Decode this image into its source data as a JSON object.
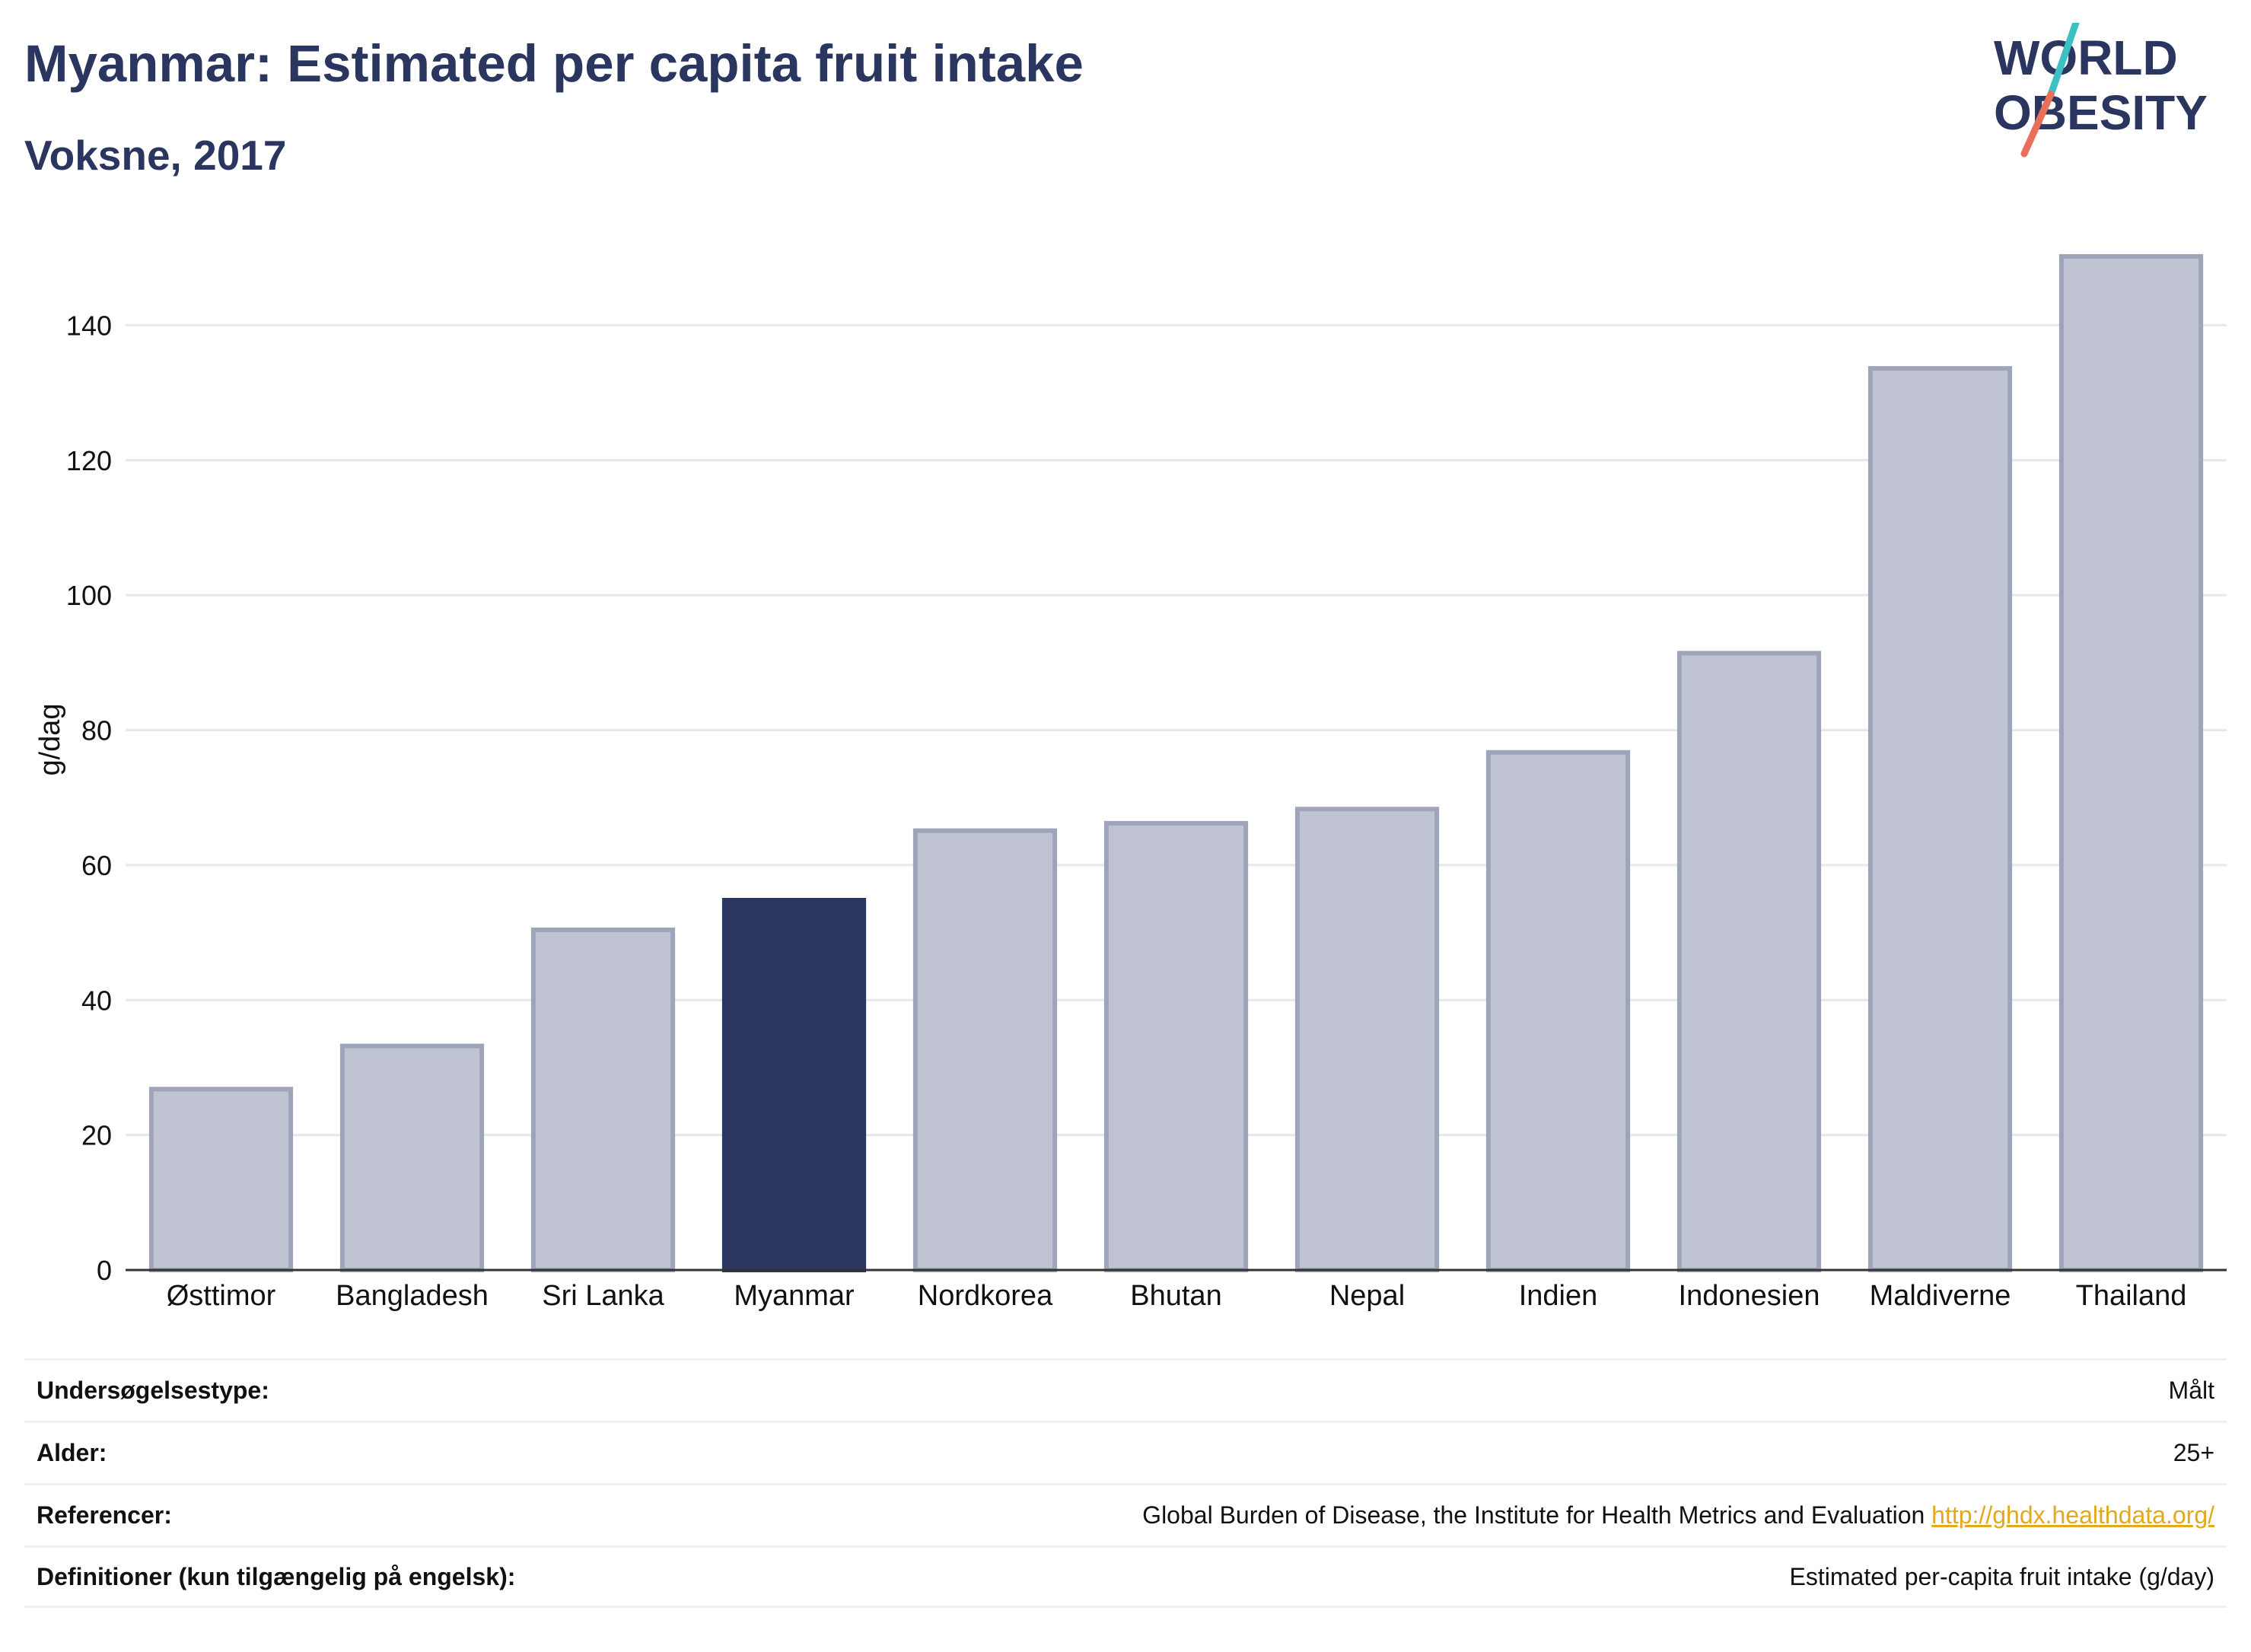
{
  "header": {
    "title": "Myanmar: Estimated per capita fruit intake",
    "subtitle": "Voksne, 2017"
  },
  "logo": {
    "line1": "WORLD",
    "line2": "OBESITY",
    "icon": "world-obesity-logo",
    "colors": {
      "text": "#2b3660",
      "slash_top": "#3cc0c3",
      "slash_bottom": "#e8705a"
    }
  },
  "chart_data": {
    "type": "bar",
    "categories": [
      "Østtimor",
      "Bangladesh",
      "Sri Lanka",
      "Myanmar",
      "Nordkorea",
      "Bhutan",
      "Nepal",
      "Indien",
      "Indonesien",
      "Maldiverne",
      "Thailand"
    ],
    "values": [
      26.8,
      33.2,
      50.4,
      54.8,
      65.1,
      66.2,
      68.3,
      76.7,
      91.4,
      133.6,
      150.2
    ],
    "highlight": "Myanmar",
    "ylabel": "g/dag",
    "xlabel": "",
    "ylim": [
      0,
      160
    ],
    "yticks": [
      0,
      20,
      40,
      60,
      80,
      100,
      120,
      140
    ],
    "grid": true,
    "colors": {
      "bar": "#c0c4d2",
      "bar_border": "#9ea4b9",
      "highlight": "#2b3660",
      "grid": "#e6e8ec",
      "axis": "#333333"
    }
  },
  "info": [
    {
      "label": "Undersøgelsestype:",
      "value": "Målt"
    },
    {
      "label": "Alder:",
      "value": "25+"
    },
    {
      "label": "Referencer:",
      "value": "Global Burden of Disease, the Institute for Health Metrics and Evaluation",
      "link": "http://ghdx.healthdata.org/"
    },
    {
      "label": "Definitioner (kun tilgængelig på engelsk):",
      "value": "Estimated per-capita fruit intake (g/day)"
    }
  ]
}
